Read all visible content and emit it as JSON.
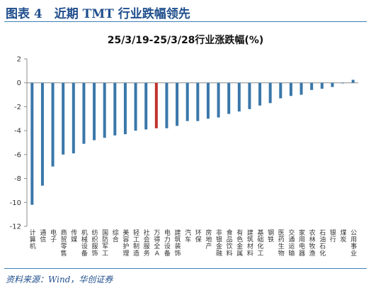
{
  "figure": {
    "title": "图表 4　近期 TMT 行业跌幅领先",
    "source": "资料来源：Wind，华创证券"
  },
  "chart_data": {
    "type": "bar",
    "title": "25/3/19-25/3/28行业涨跌幅(%)",
    "xlabel": "",
    "ylabel": "",
    "ylim": [
      -12,
      2
    ],
    "yticks": [
      2,
      0,
      -2,
      -4,
      -6,
      -8,
      -10,
      -12
    ],
    "grid": false,
    "legend": "none",
    "bar_color": "#3a77a9",
    "highlight_color": "#c0312b",
    "highlight_category": "万得全A",
    "categories": [
      "计算机",
      "通信",
      "电子",
      "商贸零售",
      "传媒",
      "机械设备",
      "纺织服饰",
      "国防军工",
      "综合",
      "美容护理",
      "轻工制造",
      "社会服务",
      "万得全A",
      "电力设备",
      "建筑装饰",
      "汽车",
      "环保",
      "房地产",
      "非银金融",
      "食品饮料",
      "有色金属",
      "建筑材料",
      "基础化工",
      "钢铁",
      "医药生物",
      "交通运输",
      "家用电器",
      "农林牧渔",
      "石油石化",
      "银行",
      "煤炭",
      "公用事业"
    ],
    "values": [
      -10.2,
      -8.6,
      -7.0,
      -6.0,
      -5.9,
      -5.1,
      -4.8,
      -4.6,
      -4.4,
      -4.3,
      -4.0,
      -3.9,
      -3.8,
      -3.8,
      -3.6,
      -3.2,
      -3.2,
      -3.0,
      -2.9,
      -2.6,
      -2.4,
      -2.2,
      -1.9,
      -1.7,
      -1.3,
      -1.1,
      -1.0,
      -0.6,
      -0.5,
      -0.35,
      -0.05,
      0.25
    ]
  }
}
